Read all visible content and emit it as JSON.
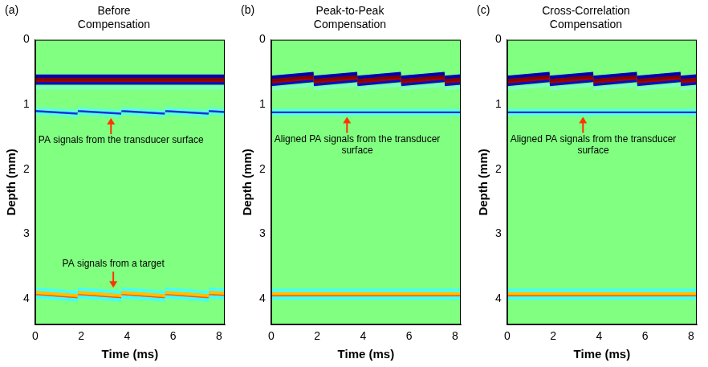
{
  "chart_data": [
    {
      "type": "line",
      "panel_label": "(a)",
      "title": "Before Compensation",
      "xlabel": "Time (ms)",
      "ylabel": "Depth (mm)",
      "xlim": [
        0,
        8.25
      ],
      "ylim": [
        0,
        4.4
      ],
      "xticks": [
        0,
        2,
        4,
        6,
        8
      ],
      "yticks": [
        0,
        1,
        2,
        3,
        4
      ],
      "grid": false,
      "x": [
        0,
        1.85,
        1.85,
        1.85,
        3.75,
        3.75,
        3.75,
        5.65,
        5.65,
        5.65,
        7.55,
        7.55,
        7.55,
        8.25
      ],
      "series": [
        {
          "color": "#7fffc0",
          "values": [
            0.74,
            0.74,
            null,
            0.74,
            0.74,
            null,
            0.74,
            0.74,
            null,
            0.74,
            0.74,
            null,
            0.74,
            0.74
          ]
        },
        {
          "color": "#0000b4",
          "values": [
            0.56,
            0.56,
            null,
            0.56,
            0.56,
            null,
            0.56,
            0.56,
            null,
            0.56,
            0.56,
            null,
            0.56,
            0.56
          ]
        },
        {
          "color": "#800000",
          "values": [
            0.6,
            0.6,
            null,
            0.6,
            0.6,
            null,
            0.6,
            0.6,
            null,
            0.6,
            0.6,
            null,
            0.6,
            0.6
          ]
        },
        {
          "color": "#a00000",
          "values": [
            0.63,
            0.63,
            null,
            0.63,
            0.63,
            null,
            0.63,
            0.63,
            null,
            0.63,
            0.63,
            null,
            0.63,
            0.63
          ]
        },
        {
          "color": "#0010c8",
          "values": [
            0.67,
            0.67,
            null,
            0.67,
            0.67,
            null,
            0.67,
            0.67,
            null,
            0.67,
            0.67,
            null,
            0.67,
            0.67
          ]
        },
        {
          "color": "#60ffd0",
          "values": [
            1.06,
            1.1,
            null,
            1.06,
            1.1,
            null,
            1.06,
            1.1,
            null,
            1.06,
            1.1,
            null,
            1.06,
            1.075
          ]
        },
        {
          "color": "#60ffd0",
          "values": [
            1.14,
            1.18,
            null,
            1.14,
            1.18,
            null,
            1.14,
            1.18,
            null,
            1.14,
            1.18,
            null,
            1.14,
            1.155
          ]
        },
        {
          "color": "#1030e0",
          "values": [
            1.1,
            1.14,
            null,
            1.1,
            1.14,
            null,
            1.1,
            1.14,
            null,
            1.1,
            1.14,
            null,
            1.1,
            1.115
          ]
        },
        {
          "color": "#40ffff",
          "values": [
            3.85,
            3.9,
            null,
            3.85,
            3.9,
            null,
            3.85,
            3.9,
            null,
            3.85,
            3.9,
            null,
            3.85,
            3.865
          ]
        },
        {
          "color": "#40ffff",
          "values": [
            3.97,
            4.02,
            null,
            3.97,
            4.02,
            null,
            3.97,
            4.02,
            null,
            3.97,
            4.02,
            null,
            3.97,
            3.985
          ]
        },
        {
          "color": "#ffc000",
          "values": [
            3.9,
            3.95,
            null,
            3.9,
            3.95,
            null,
            3.9,
            3.95,
            null,
            3.9,
            3.95,
            null,
            3.9,
            3.915
          ]
        },
        {
          "color": "#ff5a00",
          "values": [
            3.925,
            3.975,
            null,
            3.925,
            3.975,
            null,
            3.925,
            3.975,
            null,
            3.925,
            3.975,
            null,
            3.925,
            3.94
          ]
        }
      ],
      "annotations": [
        {
          "text": "PA signals from the transducer surface",
          "x": 3.3,
          "y": 1.16
        },
        {
          "text": "PA signals from a target",
          "x": 3.4,
          "y": 3.88
        }
      ]
    },
    {
      "type": "line",
      "panel_label": "(b)",
      "title": "Peak-to-Peak Compensation",
      "xlabel": "Time (ms)",
      "ylabel": "Depth (mm)",
      "xlim": [
        0,
        8.25
      ],
      "ylim": [
        0,
        4.4
      ],
      "xticks": [
        0,
        2,
        4,
        6,
        8
      ],
      "yticks": [
        0,
        1,
        2,
        3,
        4
      ],
      "grid": false,
      "x": [
        0,
        1.85,
        1.85,
        1.85,
        3.75,
        3.75,
        3.75,
        5.65,
        5.65,
        5.65,
        7.55,
        7.55,
        7.55,
        8.25
      ],
      "series": [
        {
          "color": "#7fffc0",
          "values": [
            0.76,
            0.7,
            null,
            0.76,
            0.7,
            null,
            0.76,
            0.7,
            null,
            0.76,
            0.7,
            null,
            0.76,
            0.738
          ]
        },
        {
          "color": "#0000b4",
          "values": [
            0.58,
            0.52,
            null,
            0.58,
            0.52,
            null,
            0.58,
            0.52,
            null,
            0.58,
            0.52,
            null,
            0.58,
            0.558
          ]
        },
        {
          "color": "#800000",
          "values": [
            0.62,
            0.56,
            null,
            0.62,
            0.56,
            null,
            0.62,
            0.56,
            null,
            0.62,
            0.56,
            null,
            0.62,
            0.598
          ]
        },
        {
          "color": "#a00000",
          "values": [
            0.65,
            0.59,
            null,
            0.65,
            0.59,
            null,
            0.65,
            0.59,
            null,
            0.65,
            0.59,
            null,
            0.65,
            0.628
          ]
        },
        {
          "color": "#0010c8",
          "values": [
            0.69,
            0.63,
            null,
            0.69,
            0.63,
            null,
            0.69,
            0.63,
            null,
            0.69,
            0.63,
            null,
            0.69,
            0.668
          ]
        },
        {
          "color": "#60ffd0",
          "values": [
            1.08,
            1.08,
            null,
            1.08,
            1.08,
            null,
            1.08,
            1.08,
            null,
            1.08,
            1.08,
            null,
            1.08,
            1.08
          ]
        },
        {
          "color": "#60ffd0",
          "values": [
            1.16,
            1.16,
            null,
            1.16,
            1.16,
            null,
            1.16,
            1.16,
            null,
            1.16,
            1.16,
            null,
            1.16,
            1.16
          ]
        },
        {
          "color": "#1030e0",
          "values": [
            1.12,
            1.12,
            null,
            1.12,
            1.12,
            null,
            1.12,
            1.12,
            null,
            1.12,
            1.12,
            null,
            1.12,
            1.12
          ]
        },
        {
          "color": "#40ffff",
          "values": [
            3.87,
            3.87,
            null,
            3.87,
            3.87,
            null,
            3.87,
            3.87,
            null,
            3.87,
            3.87,
            null,
            3.87,
            3.87
          ]
        },
        {
          "color": "#40ffff",
          "values": [
            3.99,
            3.99,
            null,
            3.99,
            3.99,
            null,
            3.99,
            3.99,
            null,
            3.99,
            3.99,
            null,
            3.99,
            3.99
          ]
        },
        {
          "color": "#ffc000",
          "values": [
            3.92,
            3.92,
            null,
            3.92,
            3.92,
            null,
            3.92,
            3.92,
            null,
            3.92,
            3.92,
            null,
            3.92,
            3.92
          ]
        },
        {
          "color": "#ff5a00",
          "values": [
            3.945,
            3.945,
            null,
            3.945,
            3.945,
            null,
            3.945,
            3.945,
            null,
            3.945,
            3.945,
            null,
            3.945,
            3.945
          ]
        }
      ],
      "annotations": [
        {
          "text": "Aligned PA signals from the transducer surface",
          "x": 3.3,
          "y": 1.14
        }
      ]
    },
    {
      "type": "line",
      "panel_label": "(c)",
      "title": "Cross-Correlation Compensation",
      "xlabel": "Time (ms)",
      "ylabel": "Depth (mm)",
      "xlim": [
        0,
        8.25
      ],
      "ylim": [
        0,
        4.4
      ],
      "xticks": [
        0,
        2,
        4,
        6,
        8
      ],
      "yticks": [
        0,
        1,
        2,
        3,
        4
      ],
      "grid": false,
      "x": [
        0,
        1.85,
        1.85,
        1.85,
        3.75,
        3.75,
        3.75,
        5.65,
        5.65,
        5.65,
        7.55,
        7.55,
        7.55,
        8.25
      ],
      "series": [
        {
          "color": "#7fffc0",
          "values": [
            0.76,
            0.7,
            null,
            0.76,
            0.7,
            null,
            0.76,
            0.7,
            null,
            0.76,
            0.7,
            null,
            0.76,
            0.738
          ]
        },
        {
          "color": "#0000b4",
          "values": [
            0.58,
            0.52,
            null,
            0.58,
            0.52,
            null,
            0.58,
            0.52,
            null,
            0.58,
            0.52,
            null,
            0.58,
            0.558
          ]
        },
        {
          "color": "#800000",
          "values": [
            0.62,
            0.56,
            null,
            0.62,
            0.56,
            null,
            0.62,
            0.56,
            null,
            0.62,
            0.56,
            null,
            0.62,
            0.598
          ]
        },
        {
          "color": "#a00000",
          "values": [
            0.65,
            0.59,
            null,
            0.65,
            0.59,
            null,
            0.65,
            0.59,
            null,
            0.65,
            0.59,
            null,
            0.65,
            0.628
          ]
        },
        {
          "color": "#0010c8",
          "values": [
            0.69,
            0.63,
            null,
            0.69,
            0.63,
            null,
            0.69,
            0.63,
            null,
            0.69,
            0.63,
            null,
            0.69,
            0.668
          ]
        },
        {
          "color": "#60ffd0",
          "values": [
            1.08,
            1.08,
            null,
            1.08,
            1.08,
            null,
            1.08,
            1.08,
            null,
            1.08,
            1.08,
            null,
            1.08,
            1.08
          ]
        },
        {
          "color": "#60ffd0",
          "values": [
            1.16,
            1.16,
            null,
            1.16,
            1.16,
            null,
            1.16,
            1.16,
            null,
            1.16,
            1.16,
            null,
            1.16,
            1.16
          ]
        },
        {
          "color": "#1030e0",
          "values": [
            1.12,
            1.12,
            null,
            1.12,
            1.12,
            null,
            1.12,
            1.12,
            null,
            1.12,
            1.12,
            null,
            1.12,
            1.12
          ]
        },
        {
          "color": "#40ffff",
          "values": [
            3.87,
            3.87,
            null,
            3.87,
            3.87,
            null,
            3.87,
            3.87,
            null,
            3.87,
            3.87,
            null,
            3.87,
            3.87
          ]
        },
        {
          "color": "#40ffff",
          "values": [
            3.99,
            3.99,
            null,
            3.99,
            3.99,
            null,
            3.99,
            3.99,
            null,
            3.99,
            3.99,
            null,
            3.99,
            3.99
          ]
        },
        {
          "color": "#ffc000",
          "values": [
            3.92,
            3.92,
            null,
            3.92,
            3.92,
            null,
            3.92,
            3.92,
            null,
            3.92,
            3.92,
            null,
            3.92,
            3.92
          ]
        },
        {
          "color": "#ff5a00",
          "values": [
            3.945,
            3.945,
            null,
            3.945,
            3.945,
            null,
            3.945,
            3.945,
            null,
            3.945,
            3.945,
            null,
            3.945,
            3.945
          ]
        }
      ],
      "annotations": [
        {
          "text": "Aligned PA signals from the transducer surface",
          "x": 3.3,
          "y": 1.14
        }
      ]
    }
  ]
}
